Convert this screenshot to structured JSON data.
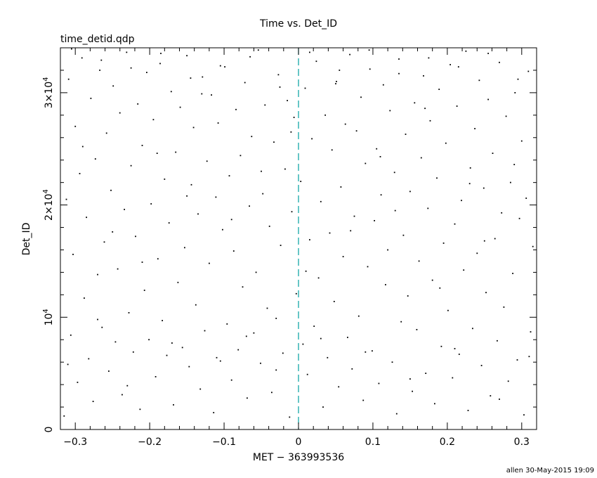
{
  "chart_data": {
    "type": "scatter",
    "title": "Time vs. Det_ID",
    "subtitle": "time_detid.qdp",
    "xlabel": "MET − 363993536",
    "ylabel": "Det_ID",
    "footer": "allen 30-May-2015 19:09",
    "xlim": [
      -0.32,
      0.32
    ],
    "ylim": [
      0,
      34000
    ],
    "x_ticks": [
      {
        "value": -0.3,
        "label": "−0.3"
      },
      {
        "value": -0.2,
        "label": "−0.2"
      },
      {
        "value": -0.1,
        "label": "−0.1"
      },
      {
        "value": 0,
        "label": "0"
      },
      {
        "value": 0.1,
        "label": "0.1"
      },
      {
        "value": 0.2,
        "label": "0.2"
      },
      {
        "value": 0.3,
        "label": "0.3"
      }
    ],
    "y_ticks": [
      {
        "value": 0,
        "base": "0",
        "exp": ""
      },
      {
        "value": 10000,
        "base": "10",
        "exp": "4"
      },
      {
        "value": 20000,
        "base": "2×10",
        "exp": "4"
      },
      {
        "value": 30000,
        "base": "3×10",
        "exp": "4"
      }
    ],
    "reference_line": {
      "x": 0,
      "style": "dashed",
      "color": "#00a0a0"
    },
    "point_color": "#000000",
    "grid": false,
    "series": [
      {
        "points": [
          [
            -0.315,
            1200
          ],
          [
            -0.312,
            20500
          ],
          [
            -0.309,
            31200
          ],
          [
            -0.306,
            8400
          ],
          [
            -0.303,
            15600
          ],
          [
            -0.3,
            27000
          ],
          [
            -0.297,
            4200
          ],
          [
            -0.294,
            22800
          ],
          [
            -0.291,
            33100
          ],
          [
            -0.288,
            11700
          ],
          [
            -0.285,
            18900
          ],
          [
            -0.282,
            6300
          ],
          [
            -0.279,
            29500
          ],
          [
            -0.276,
            2500
          ],
          [
            -0.273,
            24100
          ],
          [
            -0.27,
            13800
          ],
          [
            -0.267,
            32000
          ],
          [
            -0.264,
            9100
          ],
          [
            -0.261,
            16700
          ],
          [
            -0.258,
            26400
          ],
          [
            -0.255,
            5200
          ],
          [
            -0.252,
            21300
          ],
          [
            -0.249,
            30600
          ],
          [
            -0.246,
            7800
          ],
          [
            -0.243,
            14300
          ],
          [
            -0.24,
            28200
          ],
          [
            -0.237,
            3100
          ],
          [
            -0.234,
            19600
          ],
          [
            -0.231,
            33600
          ],
          [
            -0.228,
            10400
          ],
          [
            -0.225,
            23500
          ],
          [
            -0.222,
            6900
          ],
          [
            -0.219,
            17200
          ],
          [
            -0.216,
            29000
          ],
          [
            -0.213,
            1800
          ],
          [
            -0.21,
            25300
          ],
          [
            -0.207,
            12400
          ],
          [
            -0.204,
            31800
          ],
          [
            -0.201,
            8000
          ],
          [
            -0.198,
            20100
          ],
          [
            -0.195,
            27600
          ],
          [
            -0.192,
            4700
          ],
          [
            -0.189,
            15200
          ],
          [
            -0.186,
            32600
          ],
          [
            -0.183,
            9700
          ],
          [
            -0.18,
            22300
          ],
          [
            -0.177,
            6600
          ],
          [
            -0.174,
            18400
          ],
          [
            -0.171,
            30100
          ],
          [
            -0.168,
            2200
          ],
          [
            -0.165,
            24700
          ],
          [
            -0.162,
            13100
          ],
          [
            -0.159,
            28700
          ],
          [
            -0.156,
            7300
          ],
          [
            -0.153,
            16200
          ],
          [
            -0.15,
            33300
          ],
          [
            -0.147,
            5600
          ],
          [
            -0.144,
            21800
          ],
          [
            -0.141,
            26900
          ],
          [
            -0.138,
            11100
          ],
          [
            -0.135,
            19200
          ],
          [
            -0.132,
            3600
          ],
          [
            -0.129,
            31400
          ],
          [
            -0.126,
            8800
          ],
          [
            -0.123,
            23900
          ],
          [
            -0.12,
            14800
          ],
          [
            -0.117,
            29800
          ],
          [
            -0.114,
            1500
          ],
          [
            -0.111,
            20700
          ],
          [
            -0.108,
            27300
          ],
          [
            -0.105,
            6100
          ],
          [
            -0.102,
            17800
          ],
          [
            -0.099,
            32300
          ],
          [
            -0.096,
            9400
          ],
          [
            -0.093,
            22600
          ],
          [
            -0.09,
            4400
          ],
          [
            -0.087,
            15900
          ],
          [
            -0.084,
            28500
          ],
          [
            -0.081,
            7100
          ],
          [
            -0.078,
            24400
          ],
          [
            -0.075,
            12700
          ],
          [
            -0.072,
            30900
          ],
          [
            -0.069,
            2800
          ],
          [
            -0.066,
            19900
          ],
          [
            -0.063,
            26100
          ],
          [
            -0.06,
            8600
          ],
          [
            -0.057,
            14000
          ],
          [
            -0.054,
            33800
          ],
          [
            -0.051,
            5900
          ],
          [
            -0.048,
            21000
          ],
          [
            -0.045,
            28900
          ],
          [
            -0.042,
            10800
          ],
          [
            -0.039,
            18100
          ],
          [
            -0.036,
            3300
          ],
          [
            -0.033,
            25600
          ],
          [
            -0.03,
            9900
          ],
          [
            -0.027,
            31600
          ],
          [
            -0.024,
            16400
          ],
          [
            -0.021,
            6800
          ],
          [
            -0.018,
            23200
          ],
          [
            -0.015,
            29300
          ],
          [
            -0.012,
            1100
          ],
          [
            -0.009,
            19400
          ],
          [
            -0.006,
            27800
          ],
          [
            -0.003,
            12100
          ],
          [
            0.003,
            22100
          ],
          [
            0.006,
            7600
          ],
          [
            0.009,
            30400
          ],
          [
            0.012,
            4900
          ],
          [
            0.015,
            16900
          ],
          [
            0.018,
            25900
          ],
          [
            0.021,
            9200
          ],
          [
            0.024,
            32800
          ],
          [
            0.027,
            13500
          ],
          [
            0.03,
            20300
          ],
          [
            0.033,
            2000
          ],
          [
            0.036,
            28000
          ],
          [
            0.039,
            6400
          ],
          [
            0.042,
            17500
          ],
          [
            0.045,
            24900
          ],
          [
            0.048,
            11400
          ],
          [
            0.051,
            31000
          ],
          [
            0.054,
            3800
          ],
          [
            0.057,
            21600
          ],
          [
            0.06,
            15400
          ],
          [
            0.063,
            27200
          ],
          [
            0.066,
            8200
          ],
          [
            0.069,
            33400
          ],
          [
            0.072,
            5400
          ],
          [
            0.075,
            19000
          ],
          [
            0.078,
            26600
          ],
          [
            0.081,
            10100
          ],
          [
            0.084,
            29600
          ],
          [
            0.087,
            2600
          ],
          [
            0.09,
            23700
          ],
          [
            0.093,
            14500
          ],
          [
            0.096,
            32100
          ],
          [
            0.099,
            7000
          ],
          [
            0.102,
            18600
          ],
          [
            0.105,
            25000
          ],
          [
            0.108,
            4100
          ],
          [
            0.111,
            20900
          ],
          [
            0.114,
            30700
          ],
          [
            0.117,
            12900
          ],
          [
            0.12,
            16000
          ],
          [
            0.123,
            28400
          ],
          [
            0.126,
            6000
          ],
          [
            0.129,
            22900
          ],
          [
            0.132,
            1400
          ],
          [
            0.135,
            33000
          ],
          [
            0.138,
            9600
          ],
          [
            0.141,
            17300
          ],
          [
            0.144,
            26300
          ],
          [
            0.147,
            11900
          ],
          [
            0.15,
            21200
          ],
          [
            0.153,
            3400
          ],
          [
            0.156,
            29100
          ],
          [
            0.159,
            8900
          ],
          [
            0.162,
            15000
          ],
          [
            0.165,
            24200
          ],
          [
            0.168,
            31500
          ],
          [
            0.171,
            5000
          ],
          [
            0.174,
            19700
          ],
          [
            0.177,
            27500
          ],
          [
            0.18,
            13300
          ],
          [
            0.183,
            2300
          ],
          [
            0.186,
            22400
          ],
          [
            0.189,
            30300
          ],
          [
            0.192,
            7400
          ],
          [
            0.195,
            16600
          ],
          [
            0.198,
            25500
          ],
          [
            0.201,
            10600
          ],
          [
            0.204,
            32500
          ],
          [
            0.207,
            4600
          ],
          [
            0.21,
            18300
          ],
          [
            0.213,
            28800
          ],
          [
            0.216,
            6700
          ],
          [
            0.219,
            20400
          ],
          [
            0.222,
            14200
          ],
          [
            0.225,
            33700
          ],
          [
            0.228,
            1700
          ],
          [
            0.231,
            23300
          ],
          [
            0.234,
            9000
          ],
          [
            0.237,
            26800
          ],
          [
            0.24,
            15700
          ],
          [
            0.243,
            31100
          ],
          [
            0.246,
            5700
          ],
          [
            0.249,
            21500
          ],
          [
            0.252,
            12200
          ],
          [
            0.255,
            29400
          ],
          [
            0.258,
            3000
          ],
          [
            0.261,
            24600
          ],
          [
            0.264,
            17000
          ],
          [
            0.267,
            7900
          ],
          [
            0.27,
            32700
          ],
          [
            0.273,
            19300
          ],
          [
            0.276,
            10900
          ],
          [
            0.279,
            27900
          ],
          [
            0.282,
            4300
          ],
          [
            0.285,
            22000
          ],
          [
            0.288,
            13900
          ],
          [
            0.291,
            30000
          ],
          [
            0.294,
            6200
          ],
          [
            0.297,
            18800
          ],
          [
            0.3,
            25700
          ],
          [
            0.303,
            1300
          ],
          [
            0.306,
            20600
          ],
          [
            0.309,
            31900
          ],
          [
            0.312,
            8700
          ],
          [
            0.315,
            16300
          ],
          [
            -0.31,
            5800
          ],
          [
            -0.29,
            25200
          ],
          [
            -0.27,
            9800
          ],
          [
            -0.25,
            17600
          ],
          [
            -0.23,
            3900
          ],
          [
            -0.21,
            14900
          ],
          [
            -0.19,
            24600
          ],
          [
            -0.17,
            7700
          ],
          [
            -0.15,
            20800
          ],
          [
            -0.13,
            29900
          ],
          [
            -0.11,
            6400
          ],
          [
            -0.09,
            18700
          ],
          [
            -0.07,
            8300
          ],
          [
            -0.05,
            23000
          ],
          [
            -0.03,
            5300
          ],
          [
            -0.01,
            26500
          ],
          [
            0.01,
            14100
          ],
          [
            0.03,
            8100
          ],
          [
            0.05,
            30800
          ],
          [
            0.07,
            17700
          ],
          [
            0.09,
            6900
          ],
          [
            0.11,
            24300
          ],
          [
            0.13,
            19500
          ],
          [
            0.15,
            4500
          ],
          [
            0.17,
            28600
          ],
          [
            0.19,
            12600
          ],
          [
            0.21,
            7200
          ],
          [
            0.23,
            21900
          ],
          [
            0.25,
            16800
          ],
          [
            0.27,
            2700
          ],
          [
            0.29,
            23600
          ],
          [
            0.31,
            6500
          ],
          [
            -0.305,
            33900
          ],
          [
            -0.265,
            32900
          ],
          [
            -0.225,
            32200
          ],
          [
            -0.185,
            33500
          ],
          [
            -0.145,
            31300
          ],
          [
            -0.105,
            32400
          ],
          [
            -0.065,
            33200
          ],
          [
            -0.025,
            30500
          ],
          [
            0.015,
            33600
          ],
          [
            0.055,
            32000
          ],
          [
            0.095,
            33800
          ],
          [
            0.135,
            31700
          ],
          [
            0.175,
            33100
          ],
          [
            0.215,
            32300
          ],
          [
            0.255,
            33500
          ],
          [
            0.295,
            31200
          ]
        ]
      }
    ]
  }
}
